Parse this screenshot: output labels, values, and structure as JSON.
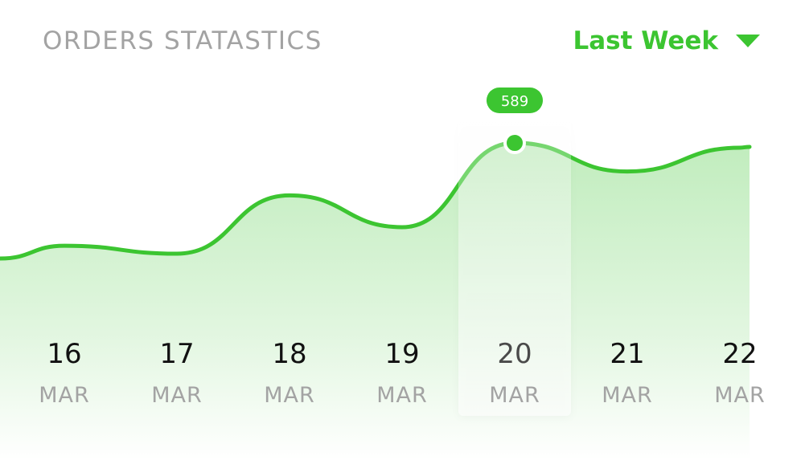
{
  "header": {
    "title": "ORDERS STATASTICS",
    "period_label": "Last Week",
    "period_icon": "caret-down-icon"
  },
  "colors": {
    "accent": "#3cc531",
    "title": "#a3a3a3",
    "label_dark": "#111111",
    "label_muted": "#a3a3a3",
    "selected_label": "#4a4a4a"
  },
  "chart_data": {
    "type": "area",
    "x": [
      {
        "day": "16",
        "month": "MAR"
      },
      {
        "day": "17",
        "month": "MAR"
      },
      {
        "day": "18",
        "month": "MAR"
      },
      {
        "day": "19",
        "month": "MAR"
      },
      {
        "day": "20",
        "month": "MAR"
      },
      {
        "day": "21",
        "month": "MAR"
      },
      {
        "day": "22",
        "month": "MAR"
      }
    ],
    "values": [
      395,
      380,
      490,
      430,
      589,
      535,
      580
    ],
    "selected_index": 4,
    "tooltip": "589",
    "title": "ORDERS STATASTICS",
    "grid": false,
    "legend": "none"
  }
}
